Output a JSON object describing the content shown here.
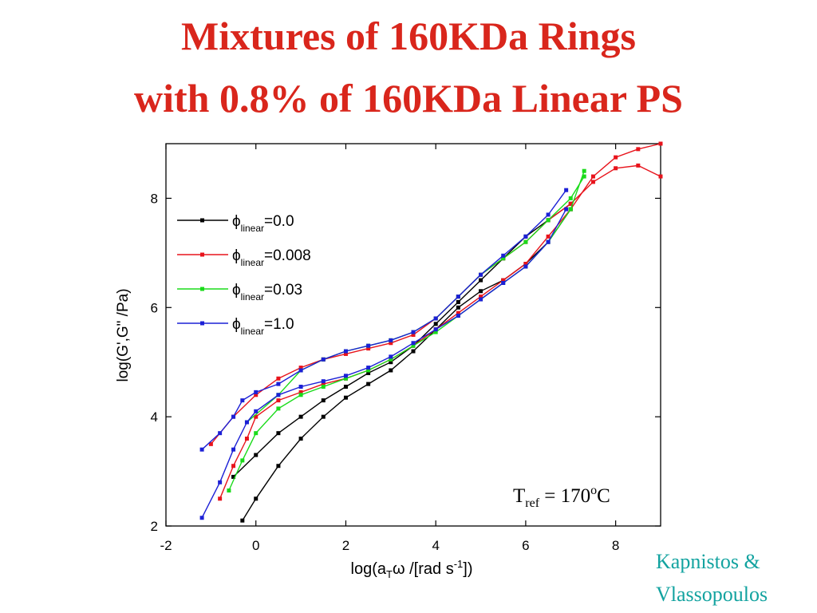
{
  "slide": {
    "title_line1": "Mixtures of 160KDa Rings",
    "title_line2": "with 0.8% of 160KDa Linear PS",
    "credit_line1": "Kapnistos &",
    "credit_line2": "Vlassopoulos"
  },
  "chart_data": {
    "type": "line",
    "xlabel_main": "log(a",
    "xlabel_sub": "T",
    "xlabel_mid": "ω /[rad s",
    "xlabel_sup": "-1",
    "xlabel_end": "])",
    "ylabel": "log(G',G\" /Pa)",
    "xlim": [
      -2,
      9
    ],
    "ylim": [
      2,
      9
    ],
    "xticks": [
      -2,
      0,
      2,
      4,
      6,
      8
    ],
    "yticks": [
      2,
      4,
      6,
      8
    ],
    "legend_position": "upper-left",
    "annotation": {
      "main": "T",
      "sub": "ref",
      "mid": " = 170",
      "sup": "o",
      "end": "C"
    },
    "series": [
      {
        "legend_prefix": "ϕ",
        "legend_sub": "linear",
        "legend_suffix": "=0.0",
        "color": "#000000",
        "G_storage": [
          [
            -0.3,
            2.1
          ],
          [
            0,
            2.5
          ],
          [
            0.5,
            3.1
          ],
          [
            1,
            3.6
          ],
          [
            1.5,
            4.0
          ],
          [
            2,
            4.35
          ],
          [
            2.5,
            4.6
          ],
          [
            3,
            4.85
          ],
          [
            3.5,
            5.2
          ],
          [
            4,
            5.6
          ],
          [
            4.5,
            6.0
          ],
          [
            5,
            6.3
          ],
          [
            5.5,
            6.5
          ],
          [
            6,
            6.8
          ],
          [
            6.5,
            7.2
          ],
          [
            7,
            7.8
          ]
        ],
        "G_loss": [
          [
            -0.5,
            2.9
          ],
          [
            0,
            3.3
          ],
          [
            0.5,
            3.7
          ],
          [
            1,
            4.0
          ],
          [
            1.5,
            4.3
          ],
          [
            2,
            4.55
          ],
          [
            2.5,
            4.8
          ],
          [
            3,
            5.0
          ],
          [
            3.5,
            5.3
          ],
          [
            4,
            5.7
          ],
          [
            4.5,
            6.1
          ],
          [
            5,
            6.5
          ],
          [
            5.5,
            6.9
          ],
          [
            6,
            7.3
          ],
          [
            6.5,
            7.6
          ],
          [
            7,
            7.9
          ]
        ]
      },
      {
        "legend_prefix": "ϕ",
        "legend_sub": "linear",
        "legend_suffix": "=0.008",
        "color": "#e8131b",
        "G_storage": [
          [
            -0.8,
            2.5
          ],
          [
            -0.5,
            3.1
          ],
          [
            -0.2,
            3.6
          ],
          [
            0,
            4.0
          ],
          [
            0.5,
            4.3
          ],
          [
            1,
            4.45
          ],
          [
            1.5,
            4.6
          ],
          [
            2,
            4.7
          ],
          [
            2.5,
            4.85
          ],
          [
            3,
            5.05
          ],
          [
            3.5,
            5.3
          ],
          [
            4,
            5.6
          ],
          [
            4.5,
            5.9
          ],
          [
            5,
            6.2
          ],
          [
            5.5,
            6.5
          ],
          [
            6,
            6.8
          ],
          [
            6.5,
            7.3
          ],
          [
            7,
            7.8
          ],
          [
            7.5,
            8.4
          ],
          [
            8,
            8.75
          ],
          [
            8.5,
            8.9
          ],
          [
            9,
            9.0
          ]
        ],
        "G_loss": [
          [
            -1,
            3.5
          ],
          [
            -0.5,
            4.0
          ],
          [
            0,
            4.4
          ],
          [
            0.5,
            4.7
          ],
          [
            1,
            4.9
          ],
          [
            1.5,
            5.05
          ],
          [
            2,
            5.15
          ],
          [
            2.5,
            5.25
          ],
          [
            3,
            5.35
          ],
          [
            3.5,
            5.5
          ],
          [
            4,
            5.8
          ],
          [
            4.5,
            6.2
          ],
          [
            5,
            6.6
          ],
          [
            5.5,
            6.9
          ],
          [
            6,
            7.2
          ],
          [
            6.5,
            7.6
          ],
          [
            7,
            7.9
          ],
          [
            7.5,
            8.3
          ],
          [
            8,
            8.55
          ],
          [
            8.5,
            8.6
          ],
          [
            9,
            8.4
          ]
        ]
      },
      {
        "legend_prefix": "ϕ",
        "legend_sub": "linear",
        "legend_suffix": "=0.03",
        "color": "#1adb1a",
        "G_storage": [
          [
            -0.6,
            2.65
          ],
          [
            -0.3,
            3.2
          ],
          [
            0,
            3.7
          ],
          [
            0.5,
            4.15
          ],
          [
            1,
            4.4
          ],
          [
            1.5,
            4.55
          ],
          [
            2,
            4.7
          ],
          [
            2.5,
            4.85
          ],
          [
            3,
            5.05
          ],
          [
            3.5,
            5.3
          ],
          [
            4,
            5.55
          ],
          [
            4.5,
            5.85
          ],
          [
            5,
            6.15
          ],
          [
            5.5,
            6.45
          ],
          [
            6,
            6.75
          ],
          [
            6.5,
            7.2
          ],
          [
            7,
            7.8
          ],
          [
            7.3,
            8.5
          ]
        ],
        "G_loss": [
          [
            -0.2,
            3.9
          ],
          [
            0.5,
            4.4
          ],
          [
            1,
            4.85
          ],
          [
            1.5,
            5.05
          ],
          [
            2,
            5.2
          ],
          [
            2.5,
            5.3
          ],
          [
            3,
            5.4
          ],
          [
            3.5,
            5.55
          ],
          [
            4,
            5.8
          ],
          [
            4.5,
            6.2
          ],
          [
            5,
            6.6
          ],
          [
            5.5,
            6.9
          ],
          [
            6,
            7.2
          ],
          [
            6.5,
            7.6
          ],
          [
            7,
            8.0
          ],
          [
            7.3,
            8.4
          ]
        ]
      },
      {
        "legend_prefix": "ϕ",
        "legend_sub": "linear",
        "legend_suffix": "=1.0",
        "color": "#1c20d6",
        "G_storage": [
          [
            -1.2,
            2.15
          ],
          [
            -0.8,
            2.8
          ],
          [
            -0.5,
            3.4
          ],
          [
            -0.2,
            3.9
          ],
          [
            0,
            4.1
          ],
          [
            0.5,
            4.4
          ],
          [
            1,
            4.55
          ],
          [
            1.5,
            4.65
          ],
          [
            2,
            4.75
          ],
          [
            2.5,
            4.9
          ],
          [
            3,
            5.1
          ],
          [
            3.5,
            5.35
          ],
          [
            4,
            5.6
          ],
          [
            4.5,
            5.85
          ],
          [
            5,
            6.15
          ],
          [
            5.5,
            6.45
          ],
          [
            6,
            6.75
          ],
          [
            6.5,
            7.2
          ],
          [
            6.9,
            7.8
          ]
        ],
        "G_loss": [
          [
            -1.2,
            3.4
          ],
          [
            -0.8,
            3.7
          ],
          [
            -0.5,
            4.0
          ],
          [
            -0.3,
            4.3
          ],
          [
            0,
            4.45
          ],
          [
            0.5,
            4.6
          ],
          [
            1,
            4.85
          ],
          [
            1.5,
            5.05
          ],
          [
            2,
            5.2
          ],
          [
            2.5,
            5.3
          ],
          [
            3,
            5.4
          ],
          [
            3.5,
            5.55
          ],
          [
            4,
            5.8
          ],
          [
            4.5,
            6.2
          ],
          [
            5,
            6.6
          ],
          [
            5.5,
            6.95
          ],
          [
            6,
            7.3
          ],
          [
            6.5,
            7.7
          ],
          [
            6.9,
            8.15
          ]
        ]
      }
    ]
  }
}
